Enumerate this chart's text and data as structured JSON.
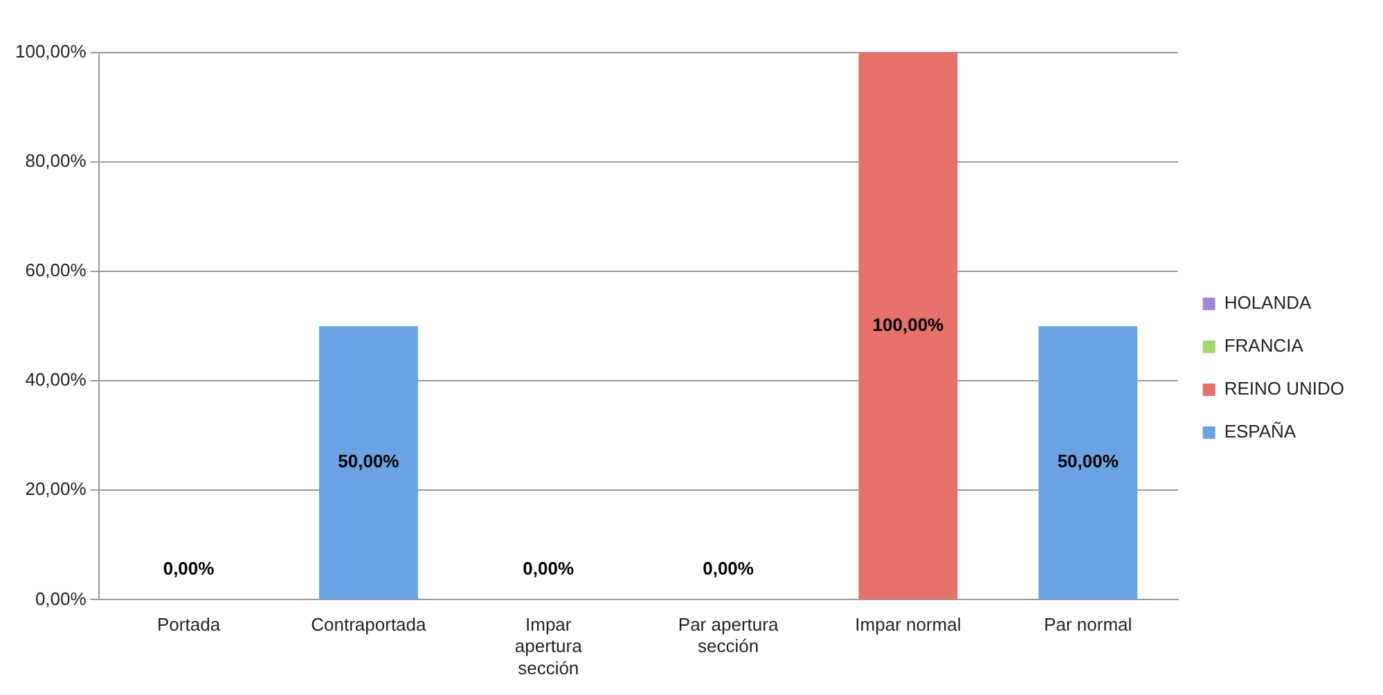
{
  "chart_data": {
    "type": "bar",
    "stacked": true,
    "categories": [
      "Portada",
      "Contraportada",
      "Impar apertura sección",
      "Par apertura sección",
      "Impar normal",
      "Par normal"
    ],
    "series": [
      {
        "name": "ESPAÑA",
        "color": "#6aa3e3",
        "values": [
          0,
          50,
          0,
          0,
          0,
          50
        ],
        "value_labels": [
          "0,00%",
          "50,00%",
          "0,00%",
          "0,00%",
          null,
          "50,00%"
        ]
      },
      {
        "name": "REINO UNIDO",
        "color": "#e6706a",
        "values": [
          0,
          0,
          0,
          0,
          100,
          0
        ],
        "value_labels": [
          null,
          null,
          null,
          null,
          "100,00%",
          null
        ]
      },
      {
        "name": "FRANCIA",
        "color": "#a2d66e",
        "values": [
          0,
          0,
          0,
          0,
          0,
          0
        ]
      },
      {
        "name": "HOLANDA",
        "color": "#a387d6",
        "values": [
          0,
          0,
          0,
          0,
          0,
          0
        ]
      }
    ],
    "ylim": [
      0,
      100
    ],
    "yticks": [
      {
        "value": 0,
        "label": "0,00%"
      },
      {
        "value": 20,
        "label": "20,00%"
      },
      {
        "value": 40,
        "label": "40,00%"
      },
      {
        "value": 60,
        "label": "60,00%"
      },
      {
        "value": 80,
        "label": "80,00%"
      },
      {
        "value": 100,
        "label": "100,00%"
      }
    ],
    "grid": "y",
    "legend": "right"
  }
}
